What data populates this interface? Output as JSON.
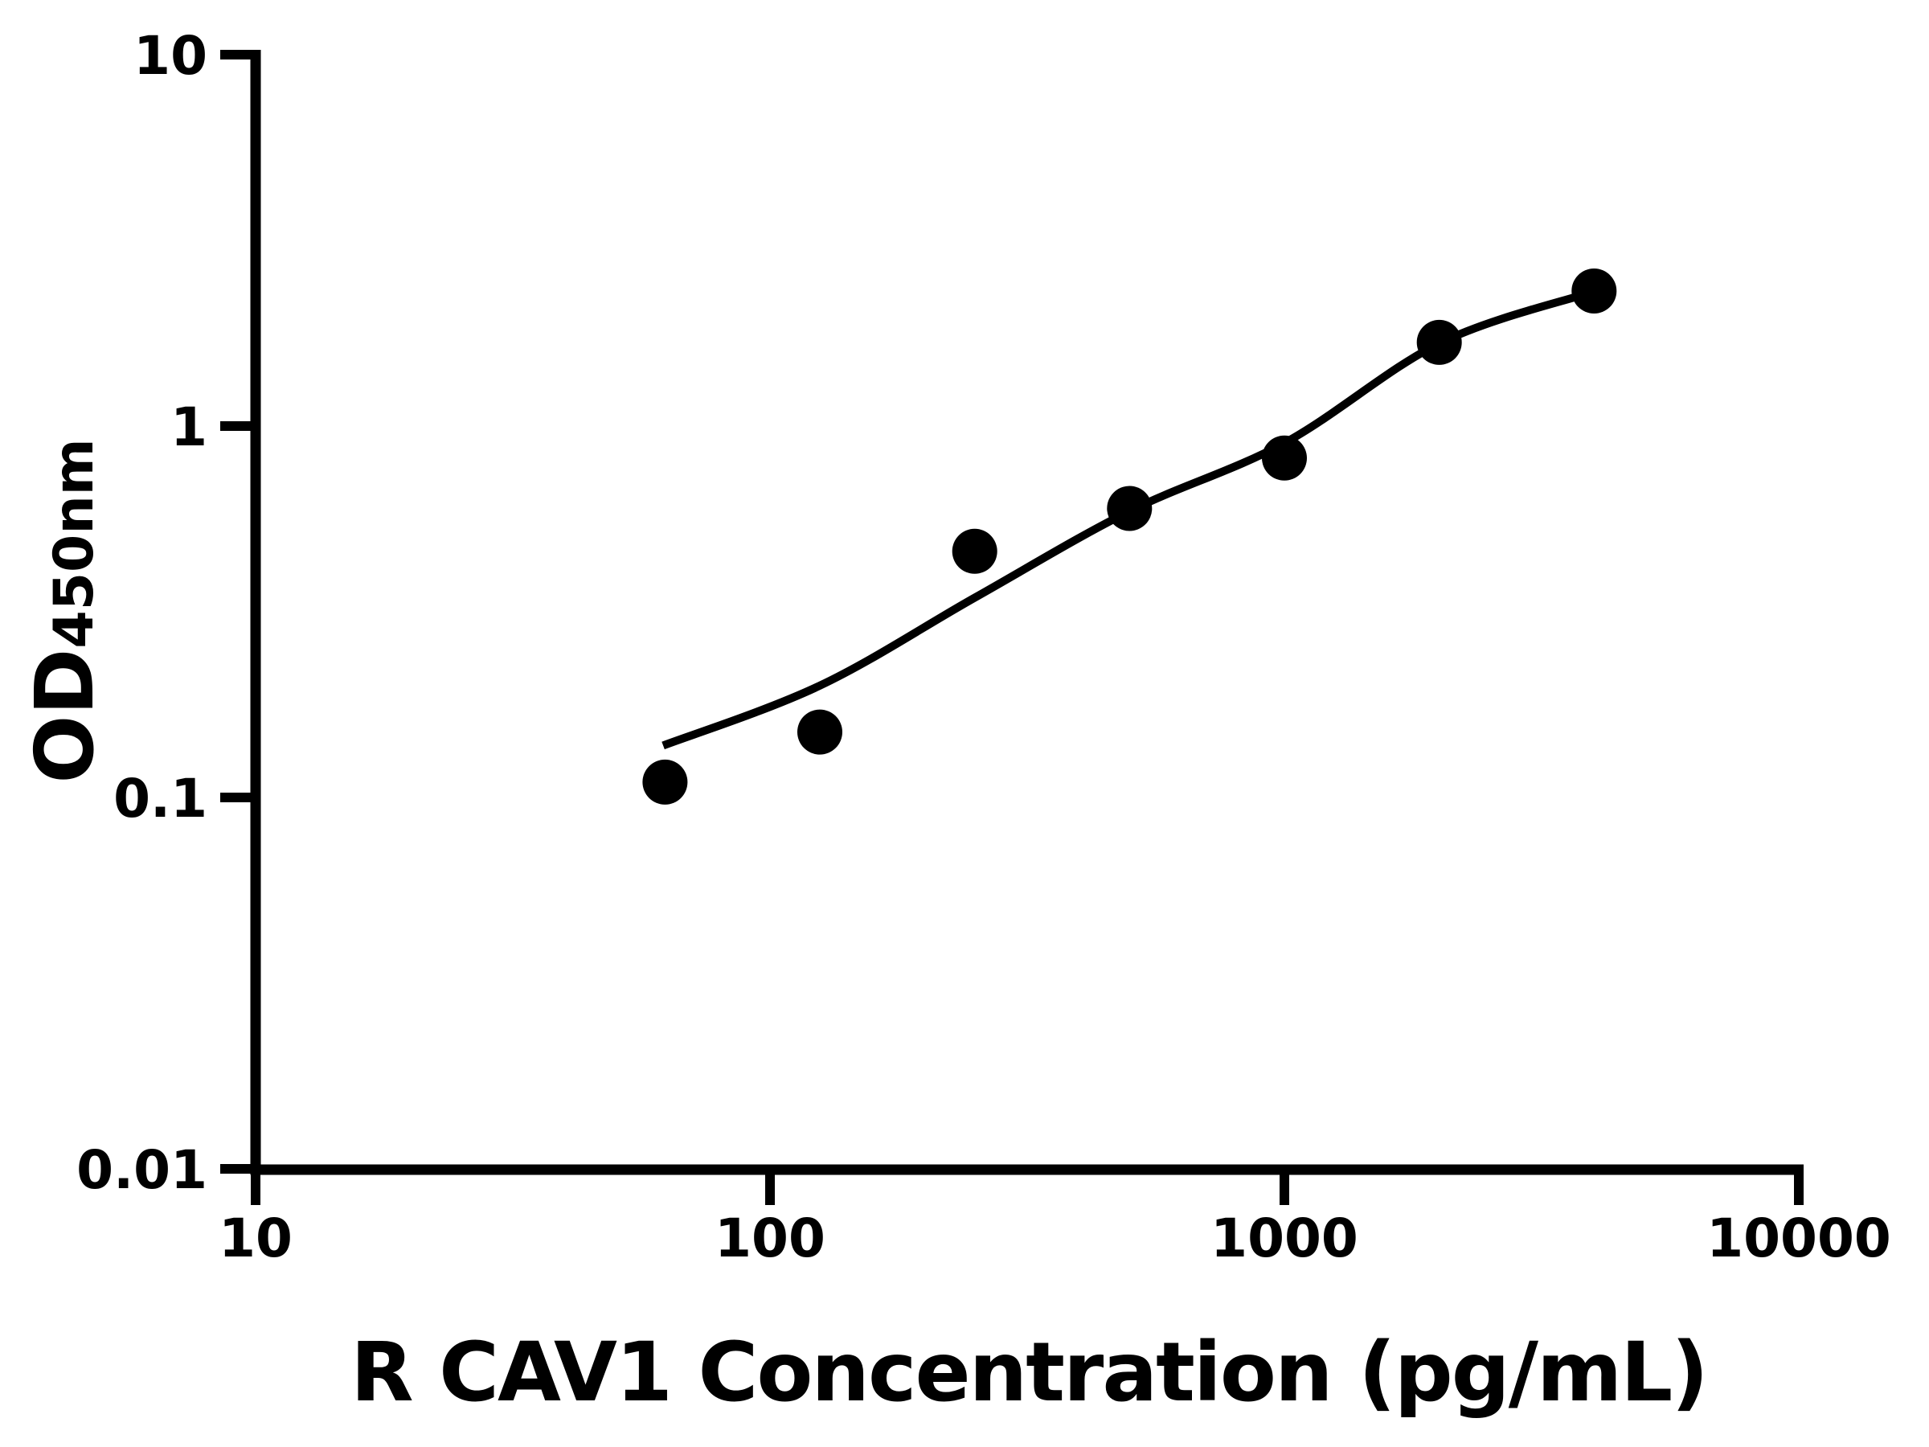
{
  "figure": {
    "background_color": "#ffffff",
    "ink_color": "#000000"
  },
  "chart_data": {
    "type": "scatter",
    "title": "",
    "xlabel": "R CAV1 Concentration (pg/mL)",
    "ylabel_main": "OD",
    "ylabel_sub": "450nm",
    "x_scale": "log",
    "y_scale": "log",
    "xlim": [
      10,
      10000
    ],
    "ylim": [
      0.01,
      10
    ],
    "x_ticks": [
      "10",
      "100",
      "1000",
      "10000"
    ],
    "y_ticks": [
      "10",
      "1",
      "0.1",
      "0.01"
    ],
    "grid": false,
    "legend": false,
    "marker": {
      "shape": "circle",
      "color": "#000000",
      "radius_px": 28
    },
    "line_color": "#000000",
    "points": [
      {
        "x": 62.5,
        "y": 0.11
      },
      {
        "x": 125,
        "y": 0.15
      },
      {
        "x": 250,
        "y": 0.46
      },
      {
        "x": 500,
        "y": 0.6
      },
      {
        "x": 1000,
        "y": 0.82
      },
      {
        "x": 2000,
        "y": 1.68
      },
      {
        "x": 4000,
        "y": 2.31
      }
    ],
    "fit_curve": [
      {
        "x": 62,
        "y": 0.138
      },
      {
        "x": 125,
        "y": 0.2
      },
      {
        "x": 250,
        "y": 0.345
      },
      {
        "x": 500,
        "y": 0.59
      },
      {
        "x": 1000,
        "y": 0.9
      },
      {
        "x": 2000,
        "y": 1.67
      },
      {
        "x": 3900,
        "y": 2.28
      }
    ]
  }
}
